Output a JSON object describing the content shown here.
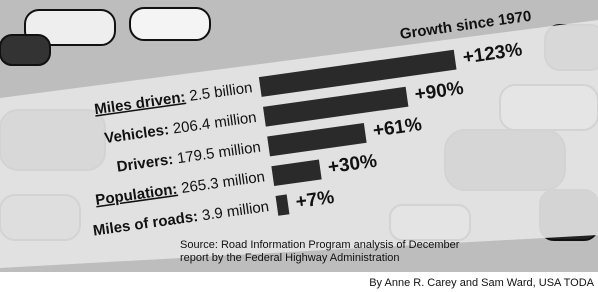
{
  "chart_data": {
    "type": "bar",
    "orientation": "horizontal",
    "title": "Growth since 1970",
    "categories": [
      "Miles driven:",
      "Vehicles:",
      "Drivers:",
      "Population:",
      "Miles of roads:"
    ],
    "amounts": [
      "2.5 billion",
      "206.4 million",
      "179.5 million",
      "265.3 million",
      "3.9 million"
    ],
    "values": [
      123,
      90,
      61,
      30,
      7
    ],
    "value_labels": [
      "+123%",
      "+90%",
      "+61%",
      "+30%",
      "+7%"
    ],
    "color": "#2a2a2a",
    "source": [
      "Source: Road Information Program analysis of December",
      "report by the Federal Highway Administration"
    ],
    "byline": "By Anne R. Carey and Sam Ward, USA TODA"
  }
}
